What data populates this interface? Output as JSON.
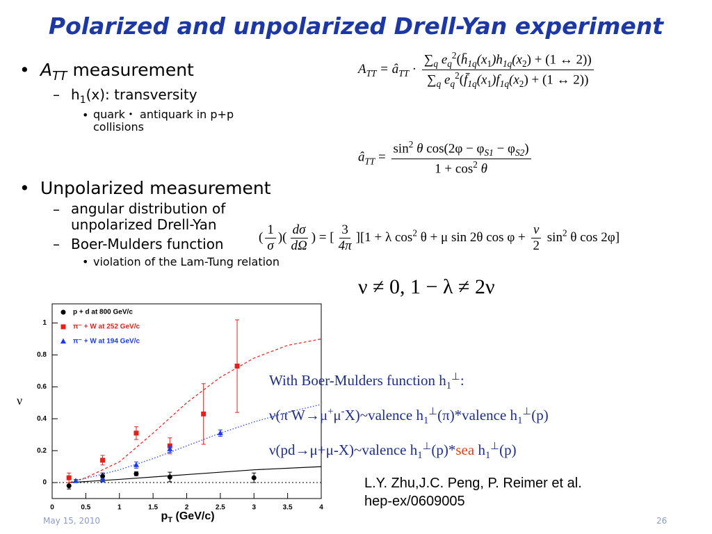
{
  "title": "Polarized and unpolarized Drell-Yan experiment",
  "bullets": [
    {
      "text": [
        {
          "t": "A",
          "s": "i"
        },
        {
          "t": "TT",
          "s": "isub"
        },
        {
          "t": " measurement"
        }
      ],
      "children": [
        {
          "text": [
            {
              "t": "h"
            },
            {
              "t": "1",
              "s": "sub"
            },
            {
              "t": "(x): transversity"
            }
          ],
          "children": [
            {
              "text": [
                {
                  "t": "quark・ antiquark in p+p collisions"
                }
              ]
            }
          ]
        }
      ]
    },
    {
      "text": [
        {
          "t": "Unpolarized measurement"
        }
      ],
      "children": [
        {
          "text": [
            {
              "t": "angular distribution of unpolarized Drell-Yan"
            }
          ]
        },
        {
          "text": [
            {
              "t": "Boer-Mulders function"
            }
          ],
          "children": [
            {
              "text": [
                {
                  "t": "violation of the Lam-Tung relation"
                }
              ]
            }
          ]
        }
      ]
    }
  ],
  "formulas": [
    [
      {
        "t": "A",
        "s": "i"
      },
      {
        "t": "TT",
        "s": "isub"
      },
      {
        "t": " = â",
        "s": "i"
      },
      {
        "t": "TT",
        "s": "isub"
      },
      {
        "t": " · "
      },
      {
        "num": [
          {
            "t": "∑"
          },
          {
            "t": "q",
            "s": "isub"
          },
          {
            "t": " e",
            "s": "i"
          },
          {
            "t": "q",
            "s": "isub"
          },
          {
            "t": "2",
            "s": "sup"
          },
          {
            "t": "("
          },
          {
            "t": "h̄",
            "s": "i"
          },
          {
            "t": "1q",
            "s": "isub"
          },
          {
            "t": "(x",
            "s": "i"
          },
          {
            "t": "1",
            "s": "sub"
          },
          {
            "t": ")h",
            "s": "i"
          },
          {
            "t": "1q",
            "s": "isub"
          },
          {
            "t": "(x",
            "s": "i"
          },
          {
            "t": "2",
            "s": "sub"
          },
          {
            "t": ") + (1 ↔ 2))"
          }
        ],
        "den": [
          {
            "t": "∑"
          },
          {
            "t": "q",
            "s": "isub"
          },
          {
            "t": " e",
            "s": "i"
          },
          {
            "t": "q",
            "s": "isub"
          },
          {
            "t": "2",
            "s": "sup"
          },
          {
            "t": "("
          },
          {
            "t": "f̄",
            "s": "i"
          },
          {
            "t": "1q",
            "s": "isub"
          },
          {
            "t": "(x",
            "s": "i"
          },
          {
            "t": "1",
            "s": "sub"
          },
          {
            "t": ")f",
            "s": "i"
          },
          {
            "t": "1q",
            "s": "isub"
          },
          {
            "t": "(x",
            "s": "i"
          },
          {
            "t": "2",
            "s": "sub"
          },
          {
            "t": ") + (1 ↔ 2))"
          }
        ]
      }
    ],
    [
      {
        "t": "â",
        "s": "i"
      },
      {
        "t": "TT",
        "s": "isub"
      },
      {
        "t": " = "
      },
      {
        "num": [
          {
            "t": "sin"
          },
          {
            "t": "2",
            "s": "sup"
          },
          {
            "t": " θ",
            "s": "i"
          },
          {
            "t": " cos(2φ − φ"
          },
          {
            "t": "S1",
            "s": "isub"
          },
          {
            "t": " − φ"
          },
          {
            "t": "S2",
            "s": "isub"
          },
          {
            "t": ")"
          }
        ],
        "den": [
          {
            "t": "1 + cos"
          },
          {
            "t": "2",
            "s": "sup"
          },
          {
            "t": " θ",
            "s": "i"
          }
        ]
      }
    ],
    [
      {
        "t": "("
      },
      {
        "num": [
          {
            "t": "1"
          }
        ],
        "den": [
          {
            "t": "σ",
            "s": "i"
          }
        ]
      },
      {
        "t": ")("
      },
      {
        "num": [
          {
            "t": "dσ",
            "s": "i"
          }
        ],
        "den": [
          {
            "t": "dΩ",
            "s": "i"
          }
        ]
      },
      {
        "t": ") = ["
      },
      {
        "num": [
          {
            "t": "3"
          }
        ],
        "den": [
          {
            "t": "4π",
            "s": "i"
          }
        ]
      },
      {
        "t": "][1 + λ cos"
      },
      {
        "t": "2",
        "s": "sup"
      },
      {
        "t": " θ + μ sin 2θ cos φ + "
      },
      {
        "num": [
          {
            "t": "ν",
            "s": "i"
          }
        ],
        "den": [
          {
            "t": "2"
          }
        ]
      },
      {
        "t": " sin"
      },
      {
        "t": "2",
        "s": "sup"
      },
      {
        "t": " θ cos 2φ]"
      }
    ],
    [
      {
        "t": "ν ≠ 0, 1 − λ ≠ 2ν"
      }
    ]
  ],
  "notes": [
    [
      {
        "t": "With Boer-Mulders function h"
      },
      {
        "t": "1",
        "s": "sub"
      },
      {
        "t": "⊥",
        "s": "sup"
      },
      {
        "t": ":"
      }
    ],
    [
      {
        "t": "ν(π"
      },
      {
        "t": "-",
        "s": "sup"
      },
      {
        "t": "W→μ"
      },
      {
        "t": "+",
        "s": "sup"
      },
      {
        "t": "μ"
      },
      {
        "t": "-",
        "s": "sup"
      },
      {
        "t": "X)~valence h"
      },
      {
        "t": "1",
        "s": "sub"
      },
      {
        "t": "⊥",
        "s": "sup"
      },
      {
        "t": "(π)*valence h"
      },
      {
        "t": "1",
        "s": "sub"
      },
      {
        "t": "⊥",
        "s": "sup"
      },
      {
        "t": "(p)"
      }
    ],
    [
      {
        "t": "ν(pd→μ+μ-X)~valence h"
      },
      {
        "t": "1",
        "s": "sub"
      },
      {
        "t": "⊥",
        "s": "sup"
      },
      {
        "t": "(p)*"
      },
      {
        "t": "sea",
        "s": "red"
      },
      {
        "t": " h"
      },
      {
        "t": "1",
        "s": "sub"
      },
      {
        "t": "⊥",
        "s": "sup"
      },
      {
        "t": "(p)"
      }
    ]
  ],
  "reference": [
    "L.Y. Zhu,J.C. Peng, P. Reimer et al.",
    "hep-ex/0609005"
  ],
  "footer": {
    "date": "May 15, 2010",
    "page": "26"
  },
  "chart_data": {
    "type": "scatter",
    "x_label": [
      {
        "t": "p"
      },
      {
        "t": "T",
        "s": "sub"
      },
      {
        "t": " (GeV/c)"
      }
    ],
    "y_label": "ν",
    "xlim": [
      0,
      4
    ],
    "ylim": [
      -0.1,
      1.12
    ],
    "xticks": [
      0,
      0.5,
      1,
      1.5,
      2,
      2.5,
      3,
      3.5,
      4
    ],
    "yticks": [
      0,
      0.2,
      0.4,
      0.6,
      0.8,
      1
    ],
    "legend": "upper left",
    "series": [
      {
        "name": "p + d at 800 GeV/c",
        "color": "#000000",
        "marker": "circle",
        "x": [
          0.25,
          0.75,
          1.25,
          1.75,
          3.0
        ],
        "values": [
          -0.02,
          0.04,
          0.055,
          0.035,
          0.03
        ],
        "errors": [
          0.02,
          0.02,
          0.012,
          0.03,
          0.03
        ]
      },
      {
        "name": "π⁻ + W at 252 GeV/c",
        "color": "#e8201a",
        "marker": "square",
        "x": [
          0.25,
          0.75,
          1.25,
          1.75,
          2.25,
          2.75
        ],
        "values": [
          0.03,
          0.14,
          0.31,
          0.23,
          0.43,
          0.73
        ],
        "errors": [
          0.03,
          0.03,
          0.04,
          0.05,
          0.19,
          0.29
        ]
      },
      {
        "name": "π⁻ + W at 194 GeV/c",
        "color": "#1a3ae8",
        "marker": "triangle",
        "x": [
          0.35,
          0.75,
          1.25,
          1.75,
          2.5
        ],
        "values": [
          0.01,
          0.015,
          0.11,
          0.21,
          0.31
        ],
        "errors": [
          0.01,
          0.01,
          0.02,
          0.02,
          0.02
        ]
      }
    ],
    "curves": [
      {
        "color": "#e8201a",
        "style": "dashed",
        "x": [
          0.25,
          0.5,
          1.0,
          1.5,
          2.0,
          2.5,
          3.0,
          3.5,
          4.0
        ],
        "values": [
          0.0,
          0.03,
          0.13,
          0.31,
          0.5,
          0.66,
          0.78,
          0.86,
          0.9
        ]
      },
      {
        "color": "#1a3ae8",
        "style": "dotted",
        "x": [
          0.25,
          1.0,
          1.5,
          2.0,
          2.5,
          3.0,
          3.5,
          4.0
        ],
        "values": [
          0.0,
          0.08,
          0.15,
          0.23,
          0.31,
          0.38,
          0.44,
          0.49
        ]
      },
      {
        "color": "#000000",
        "style": "solid",
        "x": [
          0.25,
          1.0,
          2.0,
          3.0,
          4.0
        ],
        "values": [
          0.0,
          0.02,
          0.05,
          0.08,
          0.1
        ]
      }
    ]
  }
}
